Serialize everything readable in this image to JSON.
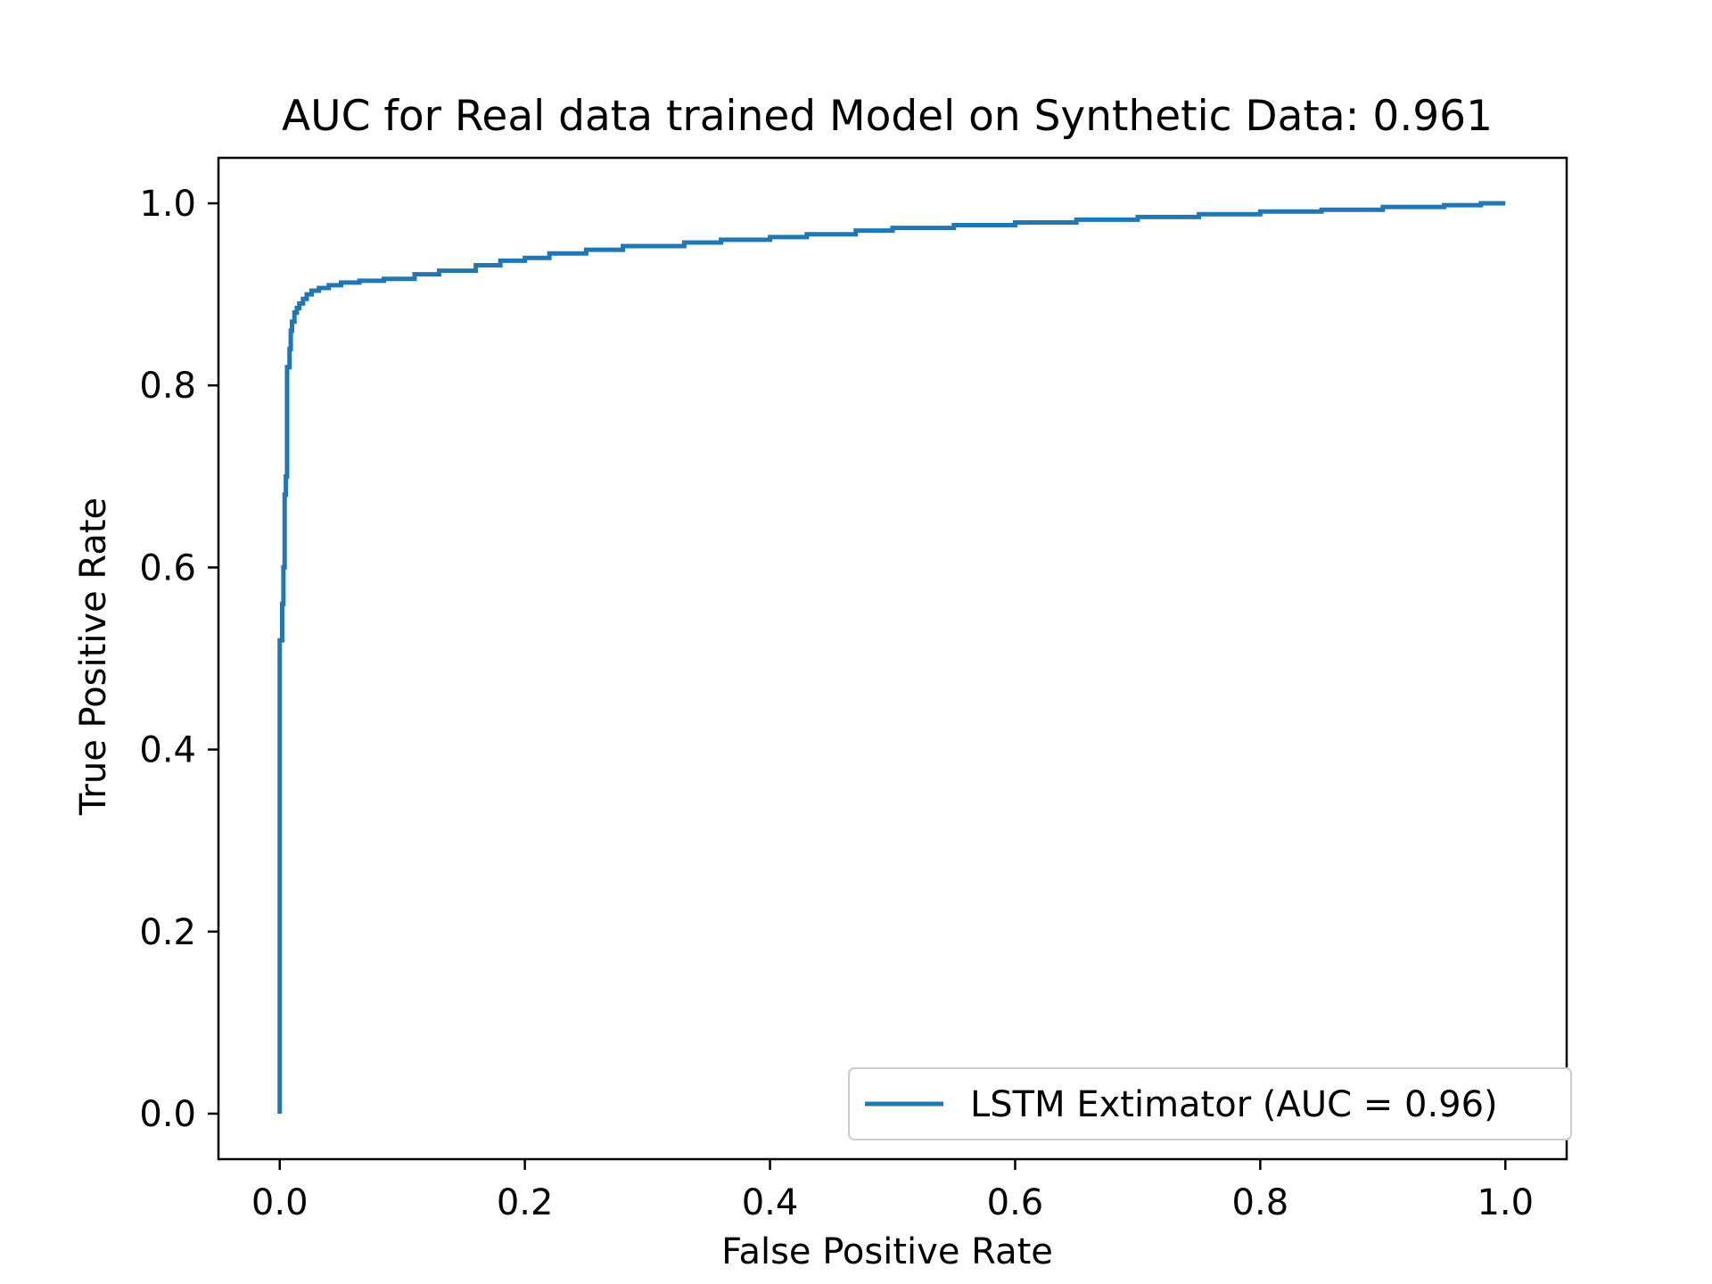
{
  "chart_data": {
    "type": "line",
    "title": "AUC for Real data trained Model on Synthetic Data: 0.961",
    "xlabel": "False Positive Rate",
    "ylabel": "True Positive Rate",
    "xlim": [
      -0.05,
      1.05
    ],
    "ylim": [
      -0.05,
      1.05
    ],
    "xticks": [
      0.0,
      0.2,
      0.4,
      0.6,
      0.8,
      1.0
    ],
    "xtick_labels": [
      "0.0",
      "0.2",
      "0.4",
      "0.6",
      "0.8",
      "1.0"
    ],
    "yticks": [
      0.0,
      0.2,
      0.4,
      0.6,
      0.8,
      1.0
    ],
    "ytick_labels": [
      "0.0",
      "0.2",
      "0.4",
      "0.6",
      "0.8",
      "1.0"
    ],
    "grid": false,
    "legend": {
      "location": "lower right",
      "entries": [
        "LSTM Extimator (AUC = 0.96)"
      ]
    },
    "colors": {
      "series": "#1f77b4",
      "axes": "#000000",
      "legend_border": "#cccccc"
    },
    "series": [
      {
        "name": "LSTM Extimator (AUC = 0.96)",
        "x": [
          0.0,
          0.0,
          0.002,
          0.002,
          0.003,
          0.003,
          0.004,
          0.004,
          0.005,
          0.005,
          0.006,
          0.006,
          0.008,
          0.008,
          0.009,
          0.009,
          0.01,
          0.01,
          0.012,
          0.012,
          0.014,
          0.014,
          0.016,
          0.016,
          0.019,
          0.019,
          0.022,
          0.022,
          0.026,
          0.026,
          0.032,
          0.032,
          0.04,
          0.04,
          0.05,
          0.05,
          0.065,
          0.065,
          0.085,
          0.085,
          0.11,
          0.11,
          0.13,
          0.13,
          0.16,
          0.16,
          0.18,
          0.18,
          0.2,
          0.2,
          0.22,
          0.22,
          0.25,
          0.25,
          0.28,
          0.28,
          0.33,
          0.33,
          0.36,
          0.36,
          0.4,
          0.4,
          0.43,
          0.43,
          0.47,
          0.47,
          0.5,
          0.5,
          0.55,
          0.55,
          0.6,
          0.6,
          0.65,
          0.65,
          0.7,
          0.7,
          0.75,
          0.75,
          0.8,
          0.8,
          0.85,
          0.85,
          0.9,
          0.9,
          0.95,
          0.95,
          0.98,
          0.98,
          1.0
        ],
        "y": [
          0.0,
          0.52,
          0.52,
          0.56,
          0.56,
          0.6,
          0.6,
          0.68,
          0.68,
          0.7,
          0.7,
          0.82,
          0.82,
          0.84,
          0.84,
          0.86,
          0.86,
          0.87,
          0.87,
          0.88,
          0.88,
          0.885,
          0.885,
          0.89,
          0.89,
          0.895,
          0.895,
          0.9,
          0.9,
          0.904,
          0.904,
          0.907,
          0.907,
          0.91,
          0.91,
          0.913,
          0.913,
          0.915,
          0.915,
          0.917,
          0.917,
          0.922,
          0.922,
          0.926,
          0.926,
          0.932,
          0.932,
          0.937,
          0.937,
          0.94,
          0.94,
          0.945,
          0.945,
          0.949,
          0.949,
          0.953,
          0.953,
          0.957,
          0.957,
          0.96,
          0.96,
          0.963,
          0.963,
          0.966,
          0.966,
          0.97,
          0.97,
          0.973,
          0.973,
          0.976,
          0.976,
          0.979,
          0.979,
          0.982,
          0.982,
          0.985,
          0.985,
          0.988,
          0.988,
          0.991,
          0.991,
          0.993,
          0.993,
          0.996,
          0.996,
          0.998,
          0.998,
          1.0,
          1.0
        ]
      }
    ]
  }
}
